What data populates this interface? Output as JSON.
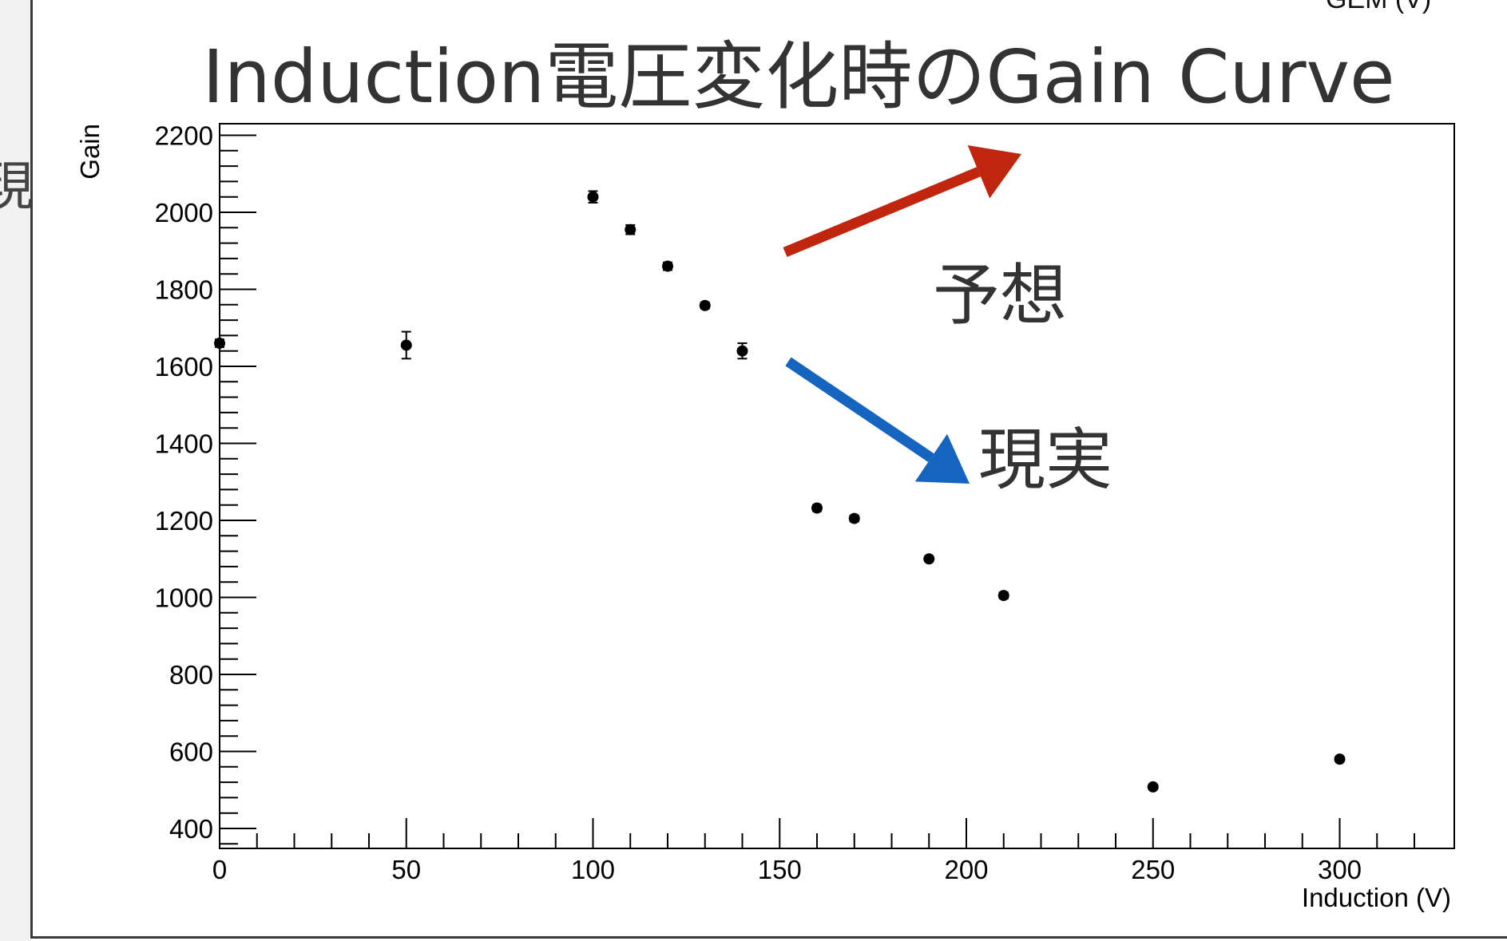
{
  "slide": {
    "left_glyph": "現",
    "top_right_text": "GEM (V)"
  },
  "chart_data": {
    "type": "scatter",
    "title": "Induction電圧変化時のGain Curve",
    "xlabel": "Induction (V)",
    "ylabel": "Gain",
    "xlim": [
      0,
      330
    ],
    "ylim": [
      400,
      2200
    ],
    "x_ticks": [
      0,
      50,
      100,
      150,
      200,
      250,
      300
    ],
    "y_ticks": [
      400,
      600,
      800,
      1000,
      1200,
      1400,
      1600,
      1800,
      2000,
      2200
    ],
    "grid": false,
    "marker_color": "#000000",
    "series": [
      {
        "points": [
          {
            "x": 0,
            "y": 1660,
            "err": 10
          },
          {
            "x": 50,
            "y": 1655,
            "err": 35
          },
          {
            "x": 100,
            "y": 2040,
            "err": 15
          },
          {
            "x": 110,
            "y": 1955,
            "err": 12
          },
          {
            "x": 120,
            "y": 1860,
            "err": 10
          },
          {
            "x": 130,
            "y": 1758,
            "err": 8
          },
          {
            "x": 140,
            "y": 1640,
            "err": 20
          },
          {
            "x": 160,
            "y": 1232,
            "err": 8
          },
          {
            "x": 170,
            "y": 1205,
            "err": 8
          },
          {
            "x": 190,
            "y": 1100,
            "err": 6
          },
          {
            "x": 210,
            "y": 1005,
            "err": 8
          },
          {
            "x": 250,
            "y": 508,
            "err": 6
          },
          {
            "x": 300,
            "y": 580,
            "err": 6
          }
        ]
      }
    ],
    "annotations": [
      {
        "text": "予想",
        "arrow_color": "#c0250e",
        "arrow_direction": "up-right"
      },
      {
        "text": "現実",
        "arrow_color": "#1565c0",
        "arrow_direction": "down-right"
      }
    ]
  }
}
